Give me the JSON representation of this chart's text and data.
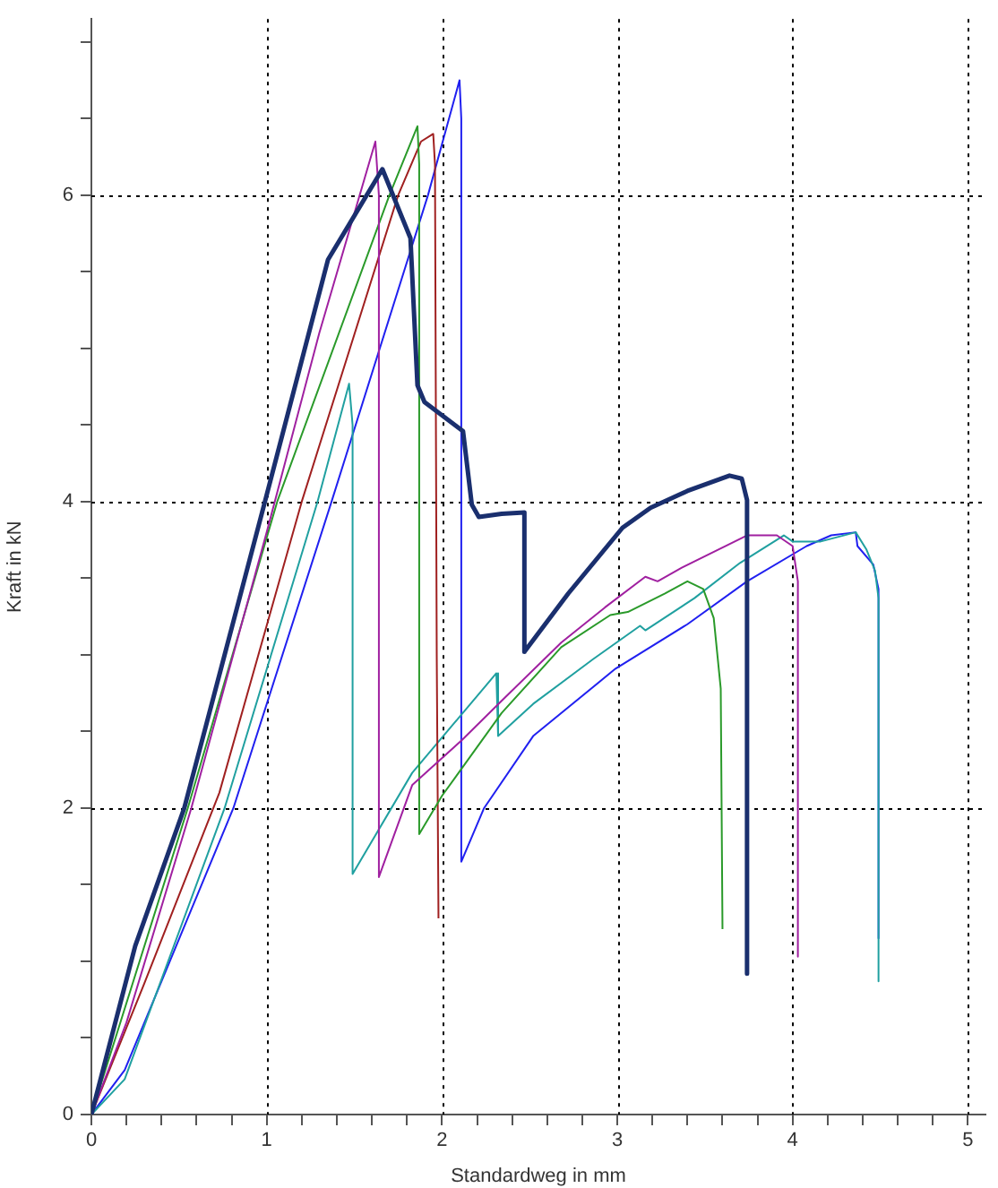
{
  "chart_data": {
    "type": "line",
    "xlabel": "Standardweg in mm",
    "ylabel": "Kraft in kN",
    "xlim": [
      0,
      5.1
    ],
    "ylim": [
      0,
      7.15
    ],
    "xticks": [
      0,
      {
        "value": 0.2,
        "label": null
      },
      {
        "value": 0.4,
        "label": null
      },
      {
        "value": 0.6,
        "label": null
      },
      {
        "value": 0.8,
        "label": null
      },
      1,
      {
        "value": 1.2,
        "label": null
      },
      {
        "value": 1.4,
        "label": null
      },
      {
        "value": 1.6,
        "label": null
      },
      {
        "value": 1.8,
        "label": null
      },
      2,
      {
        "value": 2.2,
        "label": null
      },
      {
        "value": 2.4,
        "label": null
      },
      {
        "value": 2.6,
        "label": null
      },
      {
        "value": 2.8,
        "label": null
      },
      3,
      {
        "value": 3.2,
        "label": null
      },
      {
        "value": 3.4,
        "label": null
      },
      {
        "value": 3.6,
        "label": null
      },
      {
        "value": 3.8,
        "label": null
      },
      4,
      {
        "value": 4.2,
        "label": null
      },
      {
        "value": 4.4,
        "label": null
      },
      {
        "value": 4.6,
        "label": null
      },
      {
        "value": 4.8,
        "label": null
      },
      5
    ],
    "yticks": [
      0,
      {
        "value": 0.5,
        "label": null
      },
      {
        "value": 1,
        "label": null
      },
      {
        "value": 1.5,
        "label": null
      },
      2,
      {
        "value": 2.5,
        "label": null
      },
      {
        "value": 3,
        "label": null
      },
      {
        "value": 3.5,
        "label": null
      },
      4,
      {
        "value": 4.5,
        "label": null
      },
      {
        "value": 5,
        "label": null
      },
      {
        "value": 5.5,
        "label": null
      },
      6,
      {
        "value": 6.5,
        "label": null
      },
      {
        "value": 7,
        "label": null
      }
    ],
    "grid": true,
    "legend": false,
    "marker": "none",
    "line_style": "solid",
    "series": [
      {
        "color": "#1a2f6e",
        "x": [
          0,
          0.25,
          0.53,
          0.99,
          1.35,
          1.66,
          1.82,
          1.86,
          1.9,
          2.12,
          2.17,
          2.21,
          2.34,
          2.47,
          2.47,
          2.72,
          3.03,
          3.19,
          3.4,
          3.64,
          3.71,
          3.74,
          3.74
        ],
        "values": [
          0,
          1.1,
          2,
          4,
          5.58,
          6.17,
          5.72,
          4.76,
          4.65,
          4.46,
          3.98,
          3.9,
          3.92,
          3.93,
          3.02,
          3.4,
          3.83,
          3.96,
          4.07,
          4.17,
          4.15,
          4.01,
          0.92
        ]
      },
      {
        "color": "#a020a0",
        "x": [
          0,
          0.2,
          0.57,
          1.0,
          1.3,
          1.62,
          1.64,
          1.64,
          1.83,
          2.11,
          2.34,
          2.68,
          2.93,
          3.16,
          3.23,
          3.37,
          3.74,
          3.91,
          4.0,
          4.03,
          4.03
        ],
        "values": [
          0,
          0.6,
          2,
          3.8,
          5.1,
          6.35,
          6.0,
          1.55,
          2.15,
          2.44,
          2.7,
          3.08,
          3.31,
          3.51,
          3.48,
          3.57,
          3.78,
          3.78,
          3.71,
          3.48,
          1.03
        ]
      },
      {
        "color": "#2a9a2a",
        "x": [
          0,
          0.55,
          1.06,
          1.7,
          1.86,
          1.87,
          1.87,
          2.0,
          2.34,
          2.68,
          2.96,
          3.06,
          3.27,
          3.4,
          3.49,
          3.55,
          3.59,
          3.6
        ],
        "values": [
          0,
          2,
          4,
          6,
          6.45,
          6.2,
          1.83,
          2.08,
          2.62,
          3.05,
          3.26,
          3.28,
          3.4,
          3.48,
          3.43,
          3.24,
          2.78,
          1.21
        ]
      },
      {
        "color": "#a02020",
        "x": [
          0,
          0.3,
          0.73,
          1.2,
          1.75,
          1.88,
          1.95,
          1.96,
          1.97,
          1.98
        ],
        "values": [
          0,
          0.85,
          2.1,
          4,
          6,
          6.35,
          6.4,
          6.2,
          3,
          1.28
        ]
      },
      {
        "color": "#20a0a0",
        "x": [
          0,
          0.19,
          0.76,
          1.29,
          1.47,
          1.49,
          1.49,
          1.83,
          2.31,
          2.32,
          2.52,
          2.86,
          3.13,
          3.16,
          3.44,
          3.7,
          3.95,
          4.0,
          4.16,
          4.36,
          4.42,
          4.47,
          4.49,
          4.49
        ],
        "values": [
          0,
          0.23,
          2,
          4,
          4.77,
          4.5,
          1.57,
          2.23,
          2.88,
          2.47,
          2.68,
          2.97,
          3.19,
          3.16,
          3.37,
          3.6,
          3.78,
          3.74,
          3.74,
          3.8,
          3.69,
          3.55,
          3.37,
          0.87
        ]
      },
      {
        "color": "#2020f0",
        "x": [
          0,
          0.19,
          0.81,
          1.37,
          1.92,
          2.1,
          2.11,
          2.11,
          2.24,
          2.52,
          2.99,
          3.4,
          3.74,
          4.08,
          4.22,
          4.36,
          4.37,
          4.46,
          4.49,
          4.49
        ],
        "values": [
          0,
          0.29,
          2,
          4,
          6,
          6.75,
          6.5,
          1.65,
          2,
          2.47,
          2.91,
          3.2,
          3.48,
          3.71,
          3.78,
          3.8,
          3.71,
          3.59,
          3.43,
          1.15
        ]
      }
    ]
  }
}
